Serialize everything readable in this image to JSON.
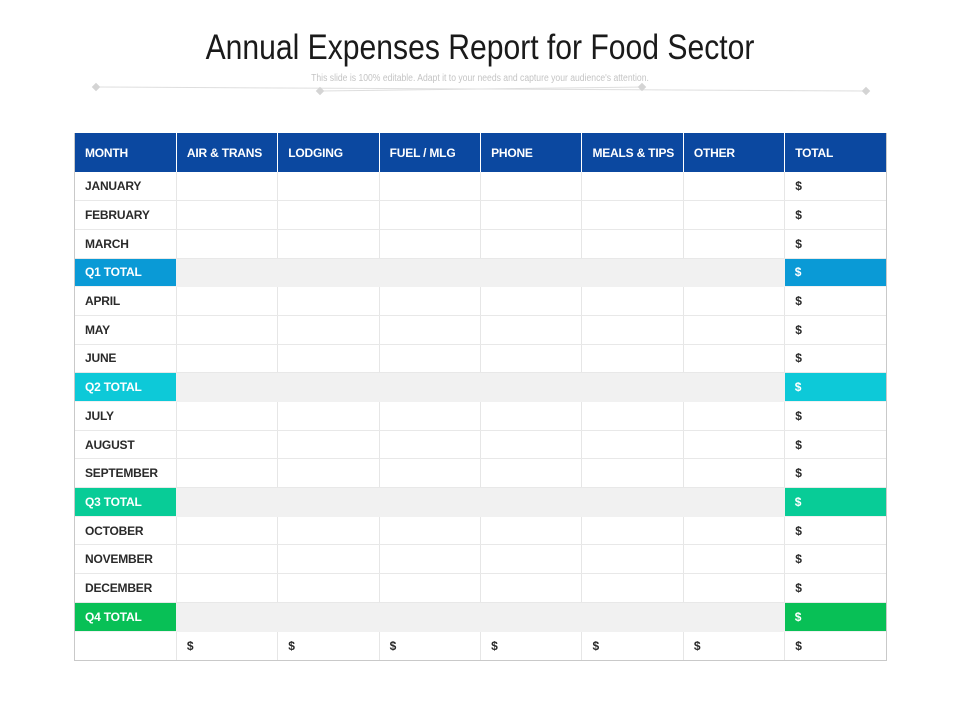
{
  "title": "Annual Expenses Report for Food Sector",
  "subtitle": "This slide is 100% editable. Adapt it to your needs and capture your audience's attention.",
  "headers": [
    "MONTH",
    "AIR & TRANS",
    "LODGING",
    "FUEL / MLG",
    "PHONE",
    "MEALS & TIPS",
    "OTHER",
    "TOTAL"
  ],
  "currency": "$",
  "rows": [
    {
      "label": "JANUARY",
      "type": "month"
    },
    {
      "label": "FEBRUARY",
      "type": "month"
    },
    {
      "label": "MARCH",
      "type": "month"
    },
    {
      "label": "Q1 TOTAL",
      "type": "total",
      "color": "#0a9ad6"
    },
    {
      "label": "APRIL",
      "type": "month"
    },
    {
      "label": "MAY",
      "type": "month"
    },
    {
      "label": "JUNE",
      "type": "month"
    },
    {
      "label": "Q2 TOTAL",
      "type": "total",
      "color": "#0dc9d8"
    },
    {
      "label": "JULY",
      "type": "month"
    },
    {
      "label": "AUGUST",
      "type": "month"
    },
    {
      "label": "SEPTEMBER",
      "type": "month"
    },
    {
      "label": "Q3 TOTAL",
      "type": "total",
      "color": "#08cc97"
    },
    {
      "label": "OCTOBER",
      "type": "month"
    },
    {
      "label": "NOVEMBER",
      "type": "month"
    },
    {
      "label": "DECEMBER",
      "type": "month"
    },
    {
      "label": "Q4 TOTAL",
      "type": "total",
      "color": "#08c056"
    }
  ],
  "footer": [
    "",
    "$",
    "$",
    "$",
    "$",
    "$",
    "$",
    "$"
  ],
  "colors": {
    "header_bg": "#0b48a0",
    "total_row_bg": "#f1f1f1"
  }
}
